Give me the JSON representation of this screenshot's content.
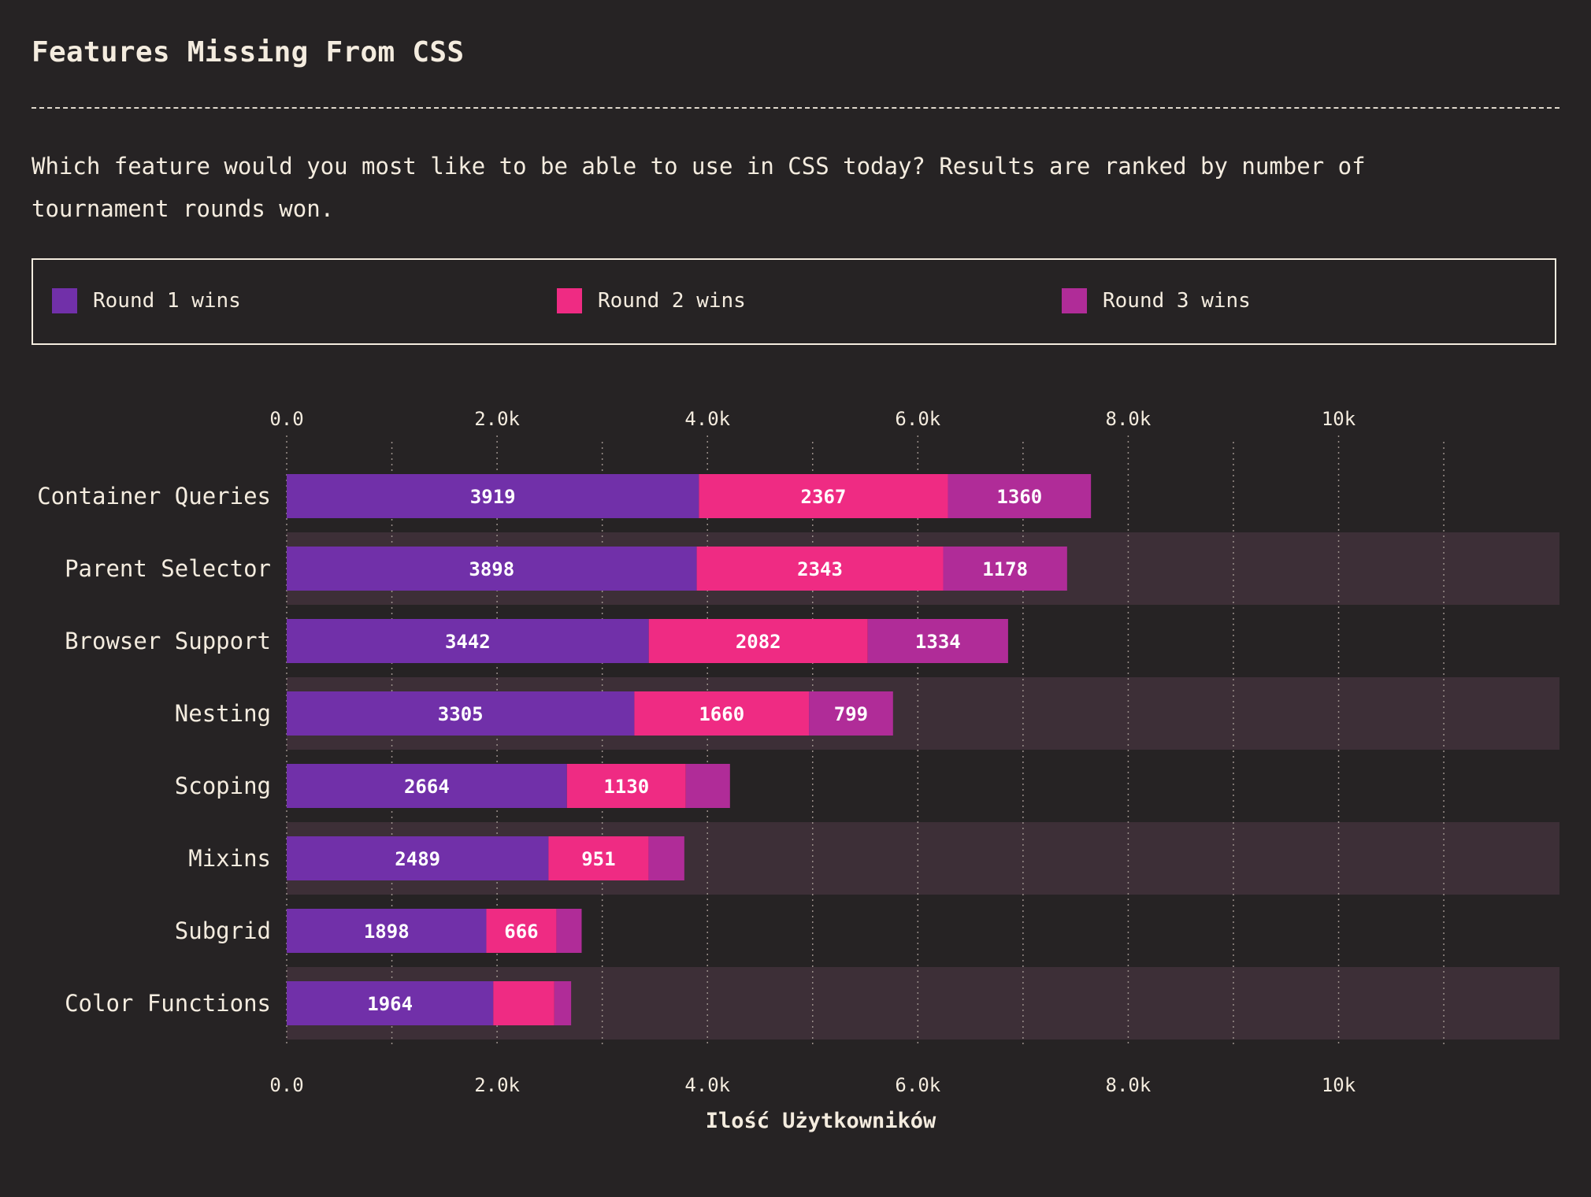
{
  "title": "Features Missing From CSS",
  "subtitle": "Which feature would you most like to be able to use in CSS today? Results are ranked by number of tournament rounds won.",
  "colors": {
    "background": "#262324",
    "row_band": "#3d2f37",
    "text": "#f4ecdf",
    "grid": "#9a8f8a",
    "round1": "#7130a9",
    "round2": "#ef2b83",
    "round3": "#b02c98"
  },
  "legend": {
    "items": [
      {
        "label": "Round 1 wins",
        "color": "#7130a9"
      },
      {
        "label": "Round 2 wins",
        "color": "#ef2b83"
      },
      {
        "label": "Round 3 wins",
        "color": "#b02c98"
      }
    ]
  },
  "chart_data": {
    "type": "bar",
    "orientation": "horizontal",
    "stacked": true,
    "categories": [
      "Container Queries",
      "Parent Selector",
      "Browser Support",
      "Nesting",
      "Scoping",
      "Mixins",
      "Subgrid",
      "Color Functions"
    ],
    "series": [
      {
        "name": "Round 1 wins",
        "color": "#7130a9",
        "values": [
          3919,
          3898,
          3442,
          3305,
          2664,
          2489,
          1898,
          1964
        ],
        "labels": [
          "3919",
          "3898",
          "3442",
          "3305",
          "2664",
          "2489",
          "1898",
          "1964"
        ]
      },
      {
        "name": "Round 2 wins",
        "color": "#ef2b83",
        "values": [
          2367,
          2343,
          2082,
          1660,
          1130,
          951,
          666,
          580
        ],
        "labels": [
          "2367",
          "2343",
          "2082",
          "1660",
          "1130",
          "951",
          "666",
          ""
        ]
      },
      {
        "name": "Round 3 wins",
        "color": "#b02c98",
        "values": [
          1360,
          1178,
          1334,
          799,
          420,
          340,
          240,
          160
        ],
        "labels": [
          "1360",
          "1178",
          "1334",
          "799",
          "",
          "",
          "",
          ""
        ]
      }
    ],
    "xlabel": "Ilość Użytkowników",
    "ylabel": "",
    "xlim": [
      0,
      12100
    ],
    "major_ticks": [
      0,
      2000,
      4000,
      6000,
      8000,
      10000
    ],
    "major_tick_labels": [
      "0.0",
      "2.0k",
      "4.0k",
      "6.0k",
      "8.0k",
      "10k"
    ],
    "minor_ticks": [
      1000,
      3000,
      5000,
      7000,
      9000,
      11000
    ],
    "grid": true,
    "tick_labels_top": true,
    "tick_labels_bottom": true,
    "alternating_row_bands": true
  }
}
